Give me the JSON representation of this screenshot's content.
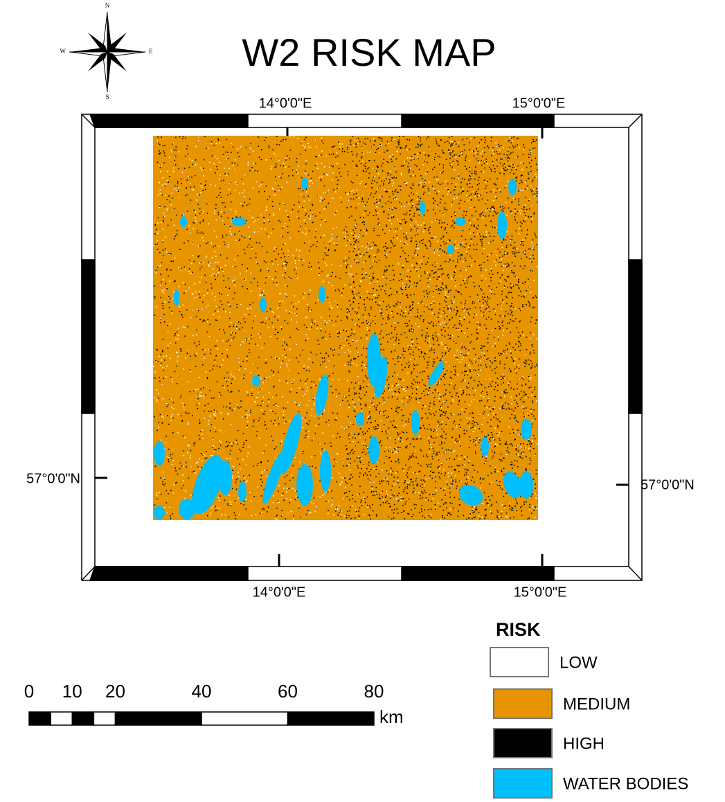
{
  "header": {
    "title": "W2 RISK MAP"
  },
  "compass": {
    "n": "N",
    "s": "S",
    "w": "W",
    "e": "E"
  },
  "graticule": {
    "top": [
      "14°0'0\"E",
      "15°0'0\"E"
    ],
    "bottom": [
      "14°0'0\"E",
      "15°0'0\"E"
    ],
    "left": "57°0'0\"N",
    "right": "57°0'0\"N"
  },
  "legend": {
    "title": "RISK",
    "items": [
      {
        "label": "LOW",
        "color": "#ffffff"
      },
      {
        "label": "MEDIUM",
        "color": "#e69500"
      },
      {
        "label": "HIGH",
        "color": "#000000"
      },
      {
        "label": "WATER BODIES",
        "color": "#00bfff"
      }
    ]
  },
  "scale_bar": {
    "ticks": [
      0,
      10,
      20,
      40,
      60,
      80
    ],
    "unit": "km"
  }
}
